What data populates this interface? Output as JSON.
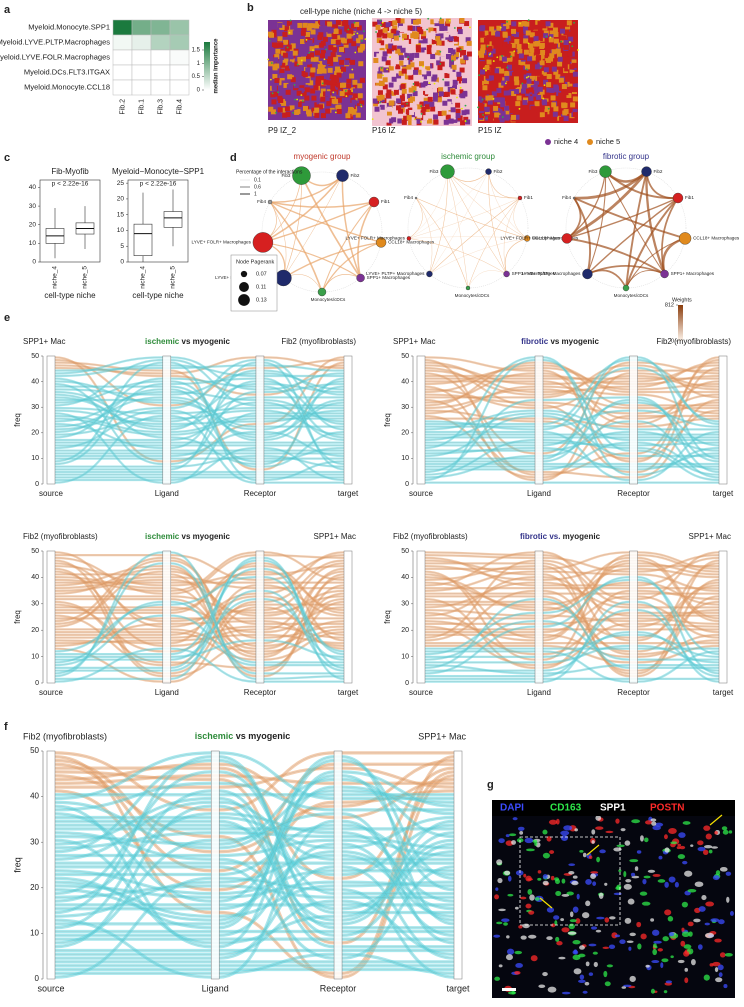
{
  "panel_labels": [
    "a",
    "b",
    "c",
    "d",
    "e",
    "f",
    "g"
  ],
  "heatmap": {
    "type": "heatmap",
    "rows": [
      "Myeloid.Monocyte.SPP1",
      "Myeloid.LYVE.PLTP.Macrophages",
      "Myeloid.LYVE.FOLR.Macrophages",
      "Myeloid.DCs.FLT3.ITGAX",
      "Myeloid.Monocyte.CCL18"
    ],
    "columns": [
      "Fib.2",
      "Fib.1",
      "Fib.3",
      "Fib.4"
    ],
    "values": [
      [
        1.8,
        1.1,
        1.0,
        0.8
      ],
      [
        0.1,
        0.2,
        0.6,
        0.7
      ],
      [
        0,
        0,
        0,
        0.05
      ],
      [
        0,
        0,
        0,
        0
      ],
      [
        0,
        0,
        0,
        0
      ]
    ],
    "color": "#1b7a3e",
    "colorbar_label": "median importance",
    "colorbar_lim": [
      0,
      1.8
    ],
    "colorbar_ticks": [
      0,
      0.5,
      1,
      1.5
    ]
  },
  "spatial": {
    "title": "cell-type niche (niche 4 -> niche 5)",
    "samples": [
      "P9 IZ_2",
      "P16 IZ",
      "P15 IZ"
    ],
    "legend": [
      {
        "name": "niche 4",
        "color": "#7b3294"
      },
      {
        "name": "niche 5",
        "color": "#e08a1e"
      }
    ]
  },
  "boxplots": {
    "type": "box",
    "xlabel": "cell-type niche",
    "panels": [
      {
        "title": "Fib-Myofib",
        "annotation": "p < 2.22e-16",
        "ylim": [
          0,
          44
        ],
        "yticks": [
          0,
          10,
          20,
          30,
          40
        ],
        "categories": [
          "niche_4",
          "niche_5"
        ],
        "boxes": [
          {
            "low": 2,
            "q1": 10,
            "median": 14,
            "q3": 18,
            "high": 29
          },
          {
            "low": 7,
            "q1": 15,
            "median": 18,
            "q3": 21,
            "high": 30
          }
        ]
      },
      {
        "title": "Myeloid−Monocyte−SPP1",
        "annotation": "p < 2.22e-16",
        "ylim": [
          0,
          26
        ],
        "yticks": [
          0,
          5,
          10,
          15,
          20,
          25
        ],
        "categories": [
          "niche_4",
          "niche_5"
        ],
        "boxes": [
          {
            "low": 0,
            "q1": 2,
            "median": 9,
            "q3": 12,
            "high": 22
          },
          {
            "low": 5,
            "q1": 11,
            "median": 14,
            "q3": 16,
            "high": 23
          }
        ]
      }
    ]
  },
  "network": {
    "groups": [
      {
        "title": "myogenic group",
        "color": "#c0392b"
      },
      {
        "title": "ischemic group",
        "color": "#2e8b3a"
      },
      {
        "title": "fibrotic group",
        "color": "#33338a"
      }
    ],
    "nodes": [
      "Fib3",
      "Fib2",
      "Fib1",
      "CCL18+ Macrophages",
      "SPP1+ Macrophages",
      "Monocytes/cDCs",
      "LYVE+ PLTP+ Macrophages",
      "LYVE+ FOLR+ Macrophages",
      "Fib4"
    ],
    "edge_legend": {
      "title": "Percentage of the interactions",
      "values": [
        0.1,
        0.6,
        1
      ]
    },
    "size_legend": {
      "title": "Node Pagerank",
      "values": [
        0.07,
        0.11,
        0.13
      ]
    },
    "weights_legend": {
      "title": "Weights",
      "ticks": [
        0,
        812
      ]
    }
  },
  "alluvial": {
    "ylabel": "freq",
    "ylim": [
      0,
      50
    ],
    "yticks": [
      0,
      10,
      20,
      30,
      40,
      50
    ],
    "axes": [
      "source",
      "Ligand",
      "Receptor",
      "target"
    ],
    "plots": [
      {
        "left": "SPP1+ Mac",
        "group": "ischemic",
        "group_color": "#2e8b3a",
        "rest": "vs myogenic",
        "right": "Fib2 (myofibroblasts)"
      },
      {
        "left": "SPP1+ Mac",
        "group": "fibrotic",
        "group_color": "#33338a",
        "rest": "vs myogenic",
        "right": "Fib2 (myofibroblasts)"
      },
      {
        "left": "Fib2 (myofibroblasts)",
        "group": "ischemic",
        "group_color": "#2e8b3a",
        "rest": "vs myogenic",
        "right": "SPP1+ Mac"
      },
      {
        "left": "Fib2 (myofibroblasts)",
        "group": "fibrotic vs.",
        "group_color": "#33338a",
        "rest": "myogenic",
        "right": "SPP1+ Mac"
      },
      {
        "left": "Fib2 (myofibroblasts)",
        "group": "ischemic",
        "group_color": "#2e8b3a",
        "rest": "vs myogenic",
        "right": "SPP1+ Mac"
      }
    ]
  },
  "if_stain": {
    "channels": [
      {
        "name": "DAPI",
        "color": "#3b4cff"
      },
      {
        "name": "CD163",
        "color": "#2ee84a"
      },
      {
        "name": "SPP1",
        "color": "#ffffff"
      },
      {
        "name": "POSTN",
        "color": "#ff2a2a"
      }
    ]
  }
}
